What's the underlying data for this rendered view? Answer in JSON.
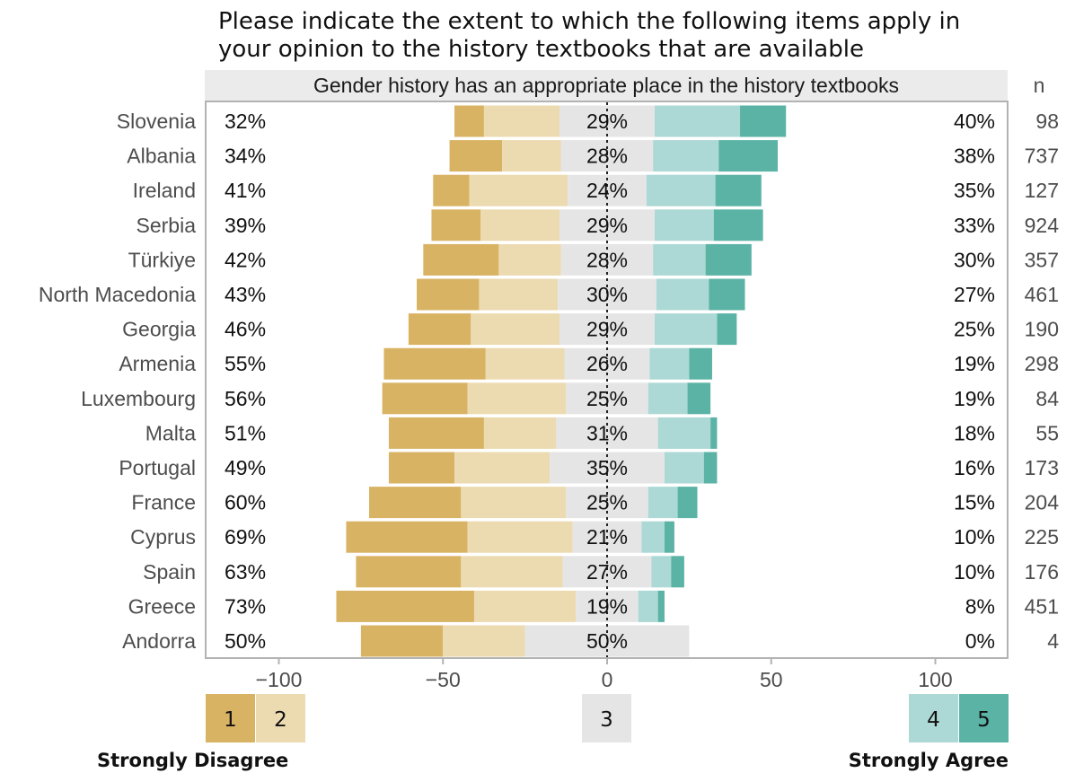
{
  "chart_data": {
    "type": "bar",
    "title": "Please indicate the extent to which the following items apply in your opinion to the history textbooks that are available",
    "title_lines": [
      "Please indicate the extent to which the following items apply in",
      "your opinion to the history textbooks that are available"
    ],
    "subtitle": "Gender history has an appropriate place in the history textbooks",
    "n_header": "n",
    "categories": [
      "Slovenia",
      "Albania",
      "Ireland",
      "Serbia",
      "Türkiye",
      "North Macedonia",
      "Georgia",
      "Armenia",
      "Luxembourg",
      "Malta",
      "Portugal",
      "France",
      "Cyprus",
      "Spain",
      "Greece",
      "Andorra"
    ],
    "n": [
      98,
      737,
      127,
      924,
      357,
      461,
      190,
      298,
      84,
      55,
      173,
      204,
      225,
      176,
      451,
      4
    ],
    "series": [
      {
        "name": "1",
        "values": [
          9,
          16,
          11,
          15,
          23,
          19,
          19,
          31,
          26,
          29,
          20,
          28,
          37,
          32,
          42,
          25
        ]
      },
      {
        "name": "2",
        "values": [
          23,
          18,
          30,
          24,
          19,
          24,
          27,
          24,
          30,
          22,
          29,
          32,
          32,
          31,
          31,
          25
        ]
      },
      {
        "name": "3",
        "values": [
          29,
          28,
          24,
          29,
          28,
          30,
          29,
          26,
          25,
          31,
          35,
          25,
          21,
          27,
          19,
          50
        ]
      },
      {
        "name": "4",
        "values": [
          26,
          20,
          21,
          18,
          16,
          16,
          19,
          12,
          12,
          16,
          12,
          9,
          7,
          6,
          6,
          0
        ]
      },
      {
        "name": "5",
        "values": [
          14,
          18,
          14,
          15,
          14,
          11,
          6,
          7,
          7,
          2,
          4,
          6,
          3,
          4,
          2,
          0
        ]
      }
    ],
    "left_labels": [
      "32%",
      "34%",
      "41%",
      "39%",
      "42%",
      "43%",
      "46%",
      "55%",
      "56%",
      "51%",
      "49%",
      "60%",
      "69%",
      "63%",
      "73%",
      "50%"
    ],
    "center_labels": [
      "29%",
      "28%",
      "24%",
      "29%",
      "28%",
      "30%",
      "29%",
      "26%",
      "25%",
      "31%",
      "35%",
      "25%",
      "21%",
      "27%",
      "19%",
      "50%"
    ],
    "right_labels": [
      "40%",
      "38%",
      "35%",
      "33%",
      "30%",
      "27%",
      "25%",
      "19%",
      "19%",
      "18%",
      "16%",
      "15%",
      "10%",
      "10%",
      "8%",
      "0%"
    ],
    "xlim": [
      -120,
      120
    ],
    "xticks": [
      -100,
      -50,
      0,
      50,
      100
    ],
    "xtick_labels": [
      "−100",
      "−50",
      "0",
      "50",
      "100"
    ],
    "legend": {
      "keys": [
        "1",
        "2",
        "3",
        "4",
        "5"
      ],
      "left_text": "Strongly Disagree",
      "right_text": "Strongly Agree",
      "placement": "bottom"
    },
    "colors": {
      "1": "#d9b364",
      "2": "#ecdbb1",
      "3": "#e5e5e5",
      "4": "#acd9d5",
      "5": "#5bb3a6"
    }
  }
}
